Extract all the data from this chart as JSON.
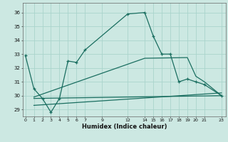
{
  "xlabel": "Humidex (Indice chaleur)",
  "bg_color": "#cce8e2",
  "grid_color": "#aad4cc",
  "line_color": "#1a6e60",
  "xlim": [
    -0.3,
    23.5
  ],
  "ylim": [
    28.5,
    36.7
  ],
  "xticks": [
    0,
    1,
    2,
    3,
    4,
    5,
    6,
    7,
    9,
    12,
    14,
    15,
    16,
    17,
    18,
    19,
    20,
    21,
    23
  ],
  "yticks": [
    29,
    30,
    31,
    32,
    33,
    34,
    35,
    36
  ],
  "series1_x": [
    0,
    1,
    2,
    3,
    4,
    5,
    6,
    7,
    12,
    14,
    15,
    16,
    17,
    18,
    19,
    20,
    21,
    23
  ],
  "series1_y": [
    32.9,
    30.5,
    29.8,
    28.8,
    29.8,
    32.5,
    32.4,
    33.3,
    35.9,
    36.0,
    34.3,
    33.0,
    33.0,
    31.0,
    31.2,
    31.0,
    30.8,
    30.0
  ],
  "series2_x": [
    1,
    23
  ],
  "series2_y": [
    29.8,
    30.0
  ],
  "series3_x": [
    1,
    23
  ],
  "series3_y": [
    29.3,
    30.2
  ],
  "series4_x": [
    1,
    14,
    19,
    20,
    21,
    23
  ],
  "series4_y": [
    29.9,
    32.7,
    32.75,
    31.4,
    31.0,
    30.0
  ]
}
